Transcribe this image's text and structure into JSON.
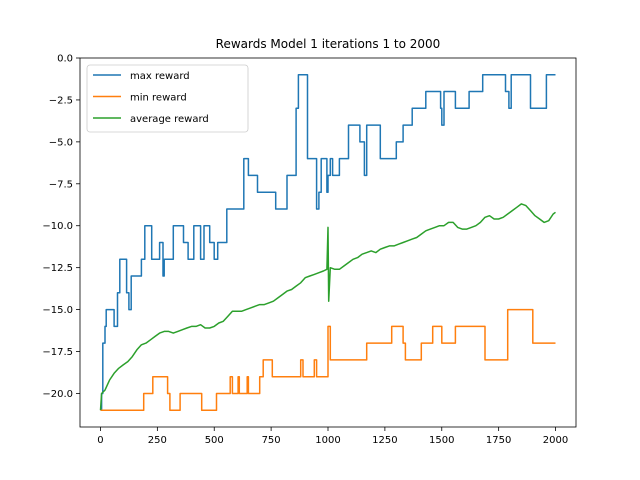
{
  "chart_data": {
    "type": "line",
    "title": "Rewards Model 1 iterations 1 to 2000",
    "xlabel": "",
    "ylabel": "",
    "xlim": [
      -90,
      2090
    ],
    "ylim": [
      -22,
      0
    ],
    "x_ticks": [
      0,
      250,
      500,
      750,
      1000,
      1250,
      1500,
      1750,
      2000
    ],
    "x_tick_labels": [
      "0",
      "250",
      "500",
      "750",
      "1000",
      "1250",
      "1500",
      "1750",
      "2000"
    ],
    "y_ticks": [
      0,
      -2.5,
      -5,
      -7.5,
      -10,
      -12.5,
      -15,
      -17.5,
      -20
    ],
    "y_tick_labels": [
      "0.0",
      "−2.5",
      "−5.0",
      "−7.5",
      "−10.0",
      "−12.5",
      "−15.0",
      "−17.5",
      "−20.0"
    ],
    "grid": false,
    "legend_position": "top-left",
    "series": [
      {
        "name": "max reward",
        "color": "#1f77b4",
        "step": true,
        "points": [
          [
            0,
            -21
          ],
          [
            5,
            -20
          ],
          [
            10,
            -17
          ],
          [
            20,
            -16
          ],
          [
            25,
            -15
          ],
          [
            60,
            -16
          ],
          [
            75,
            -14
          ],
          [
            85,
            -12
          ],
          [
            115,
            -14
          ],
          [
            125,
            -15
          ],
          [
            135,
            -13
          ],
          [
            180,
            -12
          ],
          [
            195,
            -10
          ],
          [
            225,
            -12
          ],
          [
            260,
            -11
          ],
          [
            275,
            -13
          ],
          [
            280,
            -12
          ],
          [
            320,
            -10
          ],
          [
            365,
            -11
          ],
          [
            385,
            -12
          ],
          [
            410,
            -10
          ],
          [
            440,
            -12
          ],
          [
            455,
            -10
          ],
          [
            480,
            -11
          ],
          [
            500,
            -12
          ],
          [
            515,
            -11
          ],
          [
            555,
            -9
          ],
          [
            630,
            -6
          ],
          [
            650,
            -7
          ],
          [
            690,
            -8
          ],
          [
            770,
            -9
          ],
          [
            820,
            -7
          ],
          [
            860,
            -3
          ],
          [
            870,
            -1
          ],
          [
            910,
            -6
          ],
          [
            950,
            -9
          ],
          [
            960,
            -8
          ],
          [
            970,
            -6
          ],
          [
            995,
            -8
          ],
          [
            1000,
            -7
          ],
          [
            1010,
            -6
          ],
          [
            1020,
            -7
          ],
          [
            1050,
            -6
          ],
          [
            1090,
            -4
          ],
          [
            1140,
            -5
          ],
          [
            1160,
            -7
          ],
          [
            1170,
            -4
          ],
          [
            1230,
            -6
          ],
          [
            1300,
            -5
          ],
          [
            1330,
            -4
          ],
          [
            1370,
            -3
          ],
          [
            1430,
            -2
          ],
          [
            1495,
            -3
          ],
          [
            1500,
            -4
          ],
          [
            1510,
            -2
          ],
          [
            1560,
            -3
          ],
          [
            1620,
            -2
          ],
          [
            1680,
            -1
          ],
          [
            1780,
            -2
          ],
          [
            1795,
            -3
          ],
          [
            1805,
            -1
          ],
          [
            1860,
            -1
          ],
          [
            1890,
            -3
          ],
          [
            1960,
            -1
          ],
          [
            2000,
            -1
          ]
        ]
      },
      {
        "name": "min reward",
        "color": "#ff7f0e",
        "step": true,
        "points": [
          [
            0,
            -21
          ],
          [
            190,
            -20
          ],
          [
            230,
            -19
          ],
          [
            295,
            -20
          ],
          [
            305,
            -21
          ],
          [
            350,
            -20
          ],
          [
            445,
            -21
          ],
          [
            510,
            -20
          ],
          [
            570,
            -19
          ],
          [
            580,
            -20
          ],
          [
            605,
            -19
          ],
          [
            610,
            -20
          ],
          [
            645,
            -19
          ],
          [
            650,
            -20
          ],
          [
            700,
            -19
          ],
          [
            715,
            -18
          ],
          [
            755,
            -19
          ],
          [
            880,
            -18
          ],
          [
            890,
            -19
          ],
          [
            940,
            -18
          ],
          [
            950,
            -19
          ],
          [
            1000,
            -16
          ],
          [
            1010,
            -18
          ],
          [
            1170,
            -17
          ],
          [
            1280,
            -16
          ],
          [
            1330,
            -17
          ],
          [
            1340,
            -18
          ],
          [
            1410,
            -17
          ],
          [
            1460,
            -16
          ],
          [
            1500,
            -17
          ],
          [
            1560,
            -16
          ],
          [
            1690,
            -18
          ],
          [
            1790,
            -15
          ],
          [
            1900,
            -17
          ],
          [
            2000,
            -17
          ]
        ]
      },
      {
        "name": "average reward",
        "color": "#2ca02c",
        "step": false,
        "points": [
          [
            0,
            -21
          ],
          [
            5,
            -20
          ],
          [
            20,
            -19.8
          ],
          [
            40,
            -19.2
          ],
          [
            60,
            -18.8
          ],
          [
            80,
            -18.5
          ],
          [
            100,
            -18.3
          ],
          [
            120,
            -18.1
          ],
          [
            140,
            -17.8
          ],
          [
            160,
            -17.4
          ],
          [
            180,
            -17.1
          ],
          [
            200,
            -17
          ],
          [
            220,
            -16.8
          ],
          [
            240,
            -16.6
          ],
          [
            260,
            -16.4
          ],
          [
            280,
            -16.3
          ],
          [
            300,
            -16.3
          ],
          [
            320,
            -16.4
          ],
          [
            340,
            -16.3
          ],
          [
            360,
            -16.2
          ],
          [
            380,
            -16.1
          ],
          [
            400,
            -16
          ],
          [
            420,
            -16
          ],
          [
            440,
            -15.9
          ],
          [
            460,
            -16.1
          ],
          [
            480,
            -16.1
          ],
          [
            500,
            -16
          ],
          [
            520,
            -15.8
          ],
          [
            540,
            -15.7
          ],
          [
            560,
            -15.4
          ],
          [
            580,
            -15.1
          ],
          [
            600,
            -15.1
          ],
          [
            620,
            -15.1
          ],
          [
            640,
            -15
          ],
          [
            660,
            -14.9
          ],
          [
            680,
            -14.8
          ],
          [
            700,
            -14.7
          ],
          [
            720,
            -14.7
          ],
          [
            740,
            -14.6
          ],
          [
            760,
            -14.5
          ],
          [
            780,
            -14.3
          ],
          [
            800,
            -14.1
          ],
          [
            820,
            -13.9
          ],
          [
            840,
            -13.8
          ],
          [
            860,
            -13.6
          ],
          [
            880,
            -13.4
          ],
          [
            900,
            -13.1
          ],
          [
            920,
            -13
          ],
          [
            940,
            -12.9
          ],
          [
            960,
            -12.8
          ],
          [
            980,
            -12.7
          ],
          [
            995,
            -12.6
          ],
          [
            1000,
            -10.1
          ],
          [
            1003,
            -14.5
          ],
          [
            1010,
            -12.5
          ],
          [
            1030,
            -12.6
          ],
          [
            1050,
            -12.6
          ],
          [
            1070,
            -12.4
          ],
          [
            1090,
            -12.2
          ],
          [
            1110,
            -12
          ],
          [
            1130,
            -11.9
          ],
          [
            1150,
            -11.7
          ],
          [
            1170,
            -11.6
          ],
          [
            1190,
            -11.5
          ],
          [
            1210,
            -11.6
          ],
          [
            1230,
            -11.4
          ],
          [
            1250,
            -11.3
          ],
          [
            1270,
            -11.2
          ],
          [
            1290,
            -11.2
          ],
          [
            1310,
            -11.1
          ],
          [
            1330,
            -11
          ],
          [
            1350,
            -10.9
          ],
          [
            1370,
            -10.8
          ],
          [
            1390,
            -10.7
          ],
          [
            1410,
            -10.5
          ],
          [
            1430,
            -10.3
          ],
          [
            1450,
            -10.2
          ],
          [
            1470,
            -10.1
          ],
          [
            1490,
            -10
          ],
          [
            1510,
            -10
          ],
          [
            1530,
            -9.8
          ],
          [
            1550,
            -9.8
          ],
          [
            1570,
            -10.1
          ],
          [
            1590,
            -10.2
          ],
          [
            1610,
            -10.2
          ],
          [
            1630,
            -10.1
          ],
          [
            1650,
            -10
          ],
          [
            1670,
            -9.8
          ],
          [
            1690,
            -9.5
          ],
          [
            1710,
            -9.4
          ],
          [
            1730,
            -9.6
          ],
          [
            1750,
            -9.6
          ],
          [
            1770,
            -9.5
          ],
          [
            1790,
            -9.3
          ],
          [
            1810,
            -9.1
          ],
          [
            1830,
            -8.9
          ],
          [
            1850,
            -8.7
          ],
          [
            1870,
            -8.8
          ],
          [
            1890,
            -9.1
          ],
          [
            1910,
            -9.4
          ],
          [
            1930,
            -9.6
          ],
          [
            1950,
            -9.8
          ],
          [
            1970,
            -9.7
          ],
          [
            1990,
            -9.3
          ],
          [
            2000,
            -9.2
          ]
        ]
      }
    ]
  }
}
